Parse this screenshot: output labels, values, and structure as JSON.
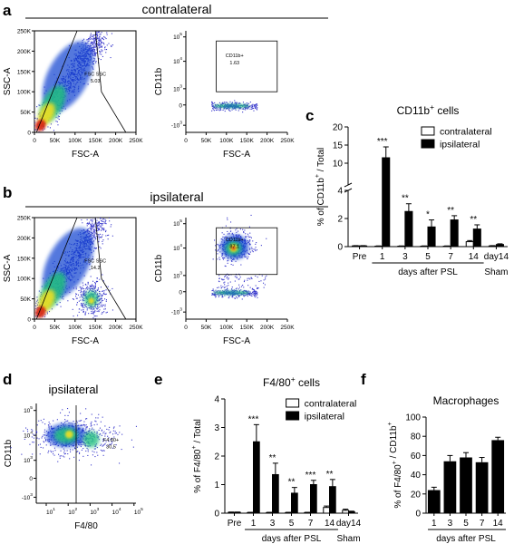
{
  "panel_letters": {
    "a": "a",
    "b": "b",
    "c": "c",
    "d": "d",
    "e": "e",
    "f": "f"
  },
  "colors": {
    "ink": "#000000",
    "hot": "#d62010",
    "warm": "#f0e020",
    "mid": "#20c080",
    "cool": "#1040d0",
    "cold": "#3a3acc"
  },
  "chart_data": [
    {
      "panel": "a",
      "type": "scatter",
      "subtype": "flow-density-plot",
      "title": "contralateral",
      "plots": [
        {
          "xlabel": "FSC-A",
          "ylabel": "SSC-A",
          "xticks": [
            "0",
            "50K",
            "100K",
            "150K",
            "200K",
            "250K"
          ],
          "yticks": [
            "0",
            "50K",
            "100K",
            "150K",
            "200K",
            "250K"
          ],
          "gate": {
            "label": "FSC SSC",
            "value": "5.03"
          }
        },
        {
          "xlabel": "FSC-A",
          "ylabel": "CD11b",
          "xticks": [
            "0",
            "50K",
            "100K",
            "150K",
            "200K",
            "250K"
          ],
          "yticks": [
            "10^5",
            "10^4",
            "10^3",
            "0",
            "-10^3"
          ],
          "gate": {
            "label": "CD11b+",
            "value": "1.63"
          }
        }
      ]
    },
    {
      "panel": "b",
      "type": "scatter",
      "subtype": "flow-density-plot",
      "title": "ipsilateral",
      "plots": [
        {
          "xlabel": "FSC-A",
          "ylabel": "SSC-A",
          "xticks": [
            "0",
            "50K",
            "100K",
            "150K",
            "200K",
            "250K"
          ],
          "yticks": [
            "0",
            "50K",
            "100K",
            "150K",
            "200K",
            "250K"
          ],
          "gate": {
            "label": "FSC SSC",
            "value": "14.2"
          }
        },
        {
          "xlabel": "FSC-A",
          "ylabel": "CD11b",
          "xticks": [
            "0",
            "50K",
            "100K",
            "150K",
            "200K",
            "250K"
          ],
          "yticks": [
            "10^5",
            "10^4",
            "10^3",
            "0",
            "-10^3"
          ],
          "gate": {
            "label": "CD11b+",
            "value": "87.1"
          }
        }
      ]
    },
    {
      "panel": "c",
      "type": "bar",
      "title": "CD11b+ cells",
      "ylabel": "% of CD11b+ / Total",
      "xlabel": "days after PSL",
      "categories": [
        "Pre",
        "1",
        "3",
        "5",
        "7",
        "14",
        "day14 Sham"
      ],
      "category_labels": {
        "pre": "Pre",
        "day14": "day14",
        "sham": "Sham"
      },
      "y_broken_axis": true,
      "yticks": [
        "0",
        "2",
        "4",
        "10",
        "15",
        "20"
      ],
      "ylim": [
        0,
        20
      ],
      "legend": {
        "position": "top-right"
      },
      "series": [
        {
          "name": "contralateral",
          "fill": "white",
          "values": [
            0.05,
            0.03,
            0.03,
            0.03,
            0.03,
            0.35,
            0.05
          ],
          "errors": [
            0.02,
            0.02,
            0.02,
            0.02,
            0.02,
            0.08,
            0.02
          ]
        },
        {
          "name": "ipsilateral",
          "fill": "black",
          "values": [
            0.05,
            11.5,
            2.5,
            1.4,
            1.9,
            1.25,
            0.15
          ],
          "errors": [
            0.02,
            3.0,
            0.55,
            0.5,
            0.3,
            0.3,
            0.05
          ]
        }
      ],
      "significance": [
        "",
        "***",
        "**",
        "*",
        "**",
        "**",
        ""
      ]
    },
    {
      "panel": "d",
      "type": "scatter",
      "subtype": "flow-density-plot",
      "title": "ipsilateral",
      "xlabel": "F4/80",
      "ylabel": "CD11b",
      "xticks": [
        "10^1",
        "10^2",
        "10^3",
        "10^4",
        "10^5"
      ],
      "yticks": [
        "10^5",
        "10^4",
        "10^3",
        "0",
        "-10^3"
      ],
      "gate": {
        "label": "F4 80+",
        "value": "30.5"
      }
    },
    {
      "panel": "e",
      "type": "bar",
      "title": "F4/80+ cells",
      "ylabel": "% of F4/80+ / Total",
      "xlabel": "days after PSL",
      "categories": [
        "Pre",
        "1",
        "3",
        "5",
        "7",
        "14",
        "day14 Sham"
      ],
      "category_labels": {
        "pre": "Pre",
        "day14": "day14",
        "sham": "Sham"
      },
      "yticks": [
        "0",
        "1",
        "2",
        "3",
        "4"
      ],
      "ylim": [
        0,
        4
      ],
      "legend": {
        "position": "top-right"
      },
      "series": [
        {
          "name": "contralateral",
          "fill": "white",
          "values": [
            0.03,
            0.02,
            0.02,
            0.02,
            0.02,
            0.2,
            0.1
          ],
          "errors": [
            0.01,
            0.01,
            0.01,
            0.01,
            0.01,
            0.05,
            0.04
          ]
        },
        {
          "name": "ipsilateral",
          "fill": "black",
          "values": [
            0.03,
            2.5,
            1.35,
            0.7,
            1.0,
            0.93,
            0.05
          ],
          "errors": [
            0.01,
            0.6,
            0.4,
            0.2,
            0.15,
            0.25,
            0.02
          ]
        }
      ],
      "significance": [
        "",
        "***",
        "**",
        "**",
        "***",
        "**",
        ""
      ]
    },
    {
      "panel": "f",
      "type": "bar",
      "title": "Macrophages",
      "ylabel": "% of F4/80+ / CD11b+",
      "xlabel": "days after PSL",
      "categories": [
        "1",
        "3",
        "5",
        "7",
        "14"
      ],
      "yticks": [
        "0",
        "20",
        "40",
        "60",
        "80",
        "100"
      ],
      "ylim": [
        0,
        100
      ],
      "values": [
        24,
        54,
        58,
        53,
        76
      ],
      "errors": [
        3,
        6,
        5,
        5,
        3
      ]
    }
  ]
}
